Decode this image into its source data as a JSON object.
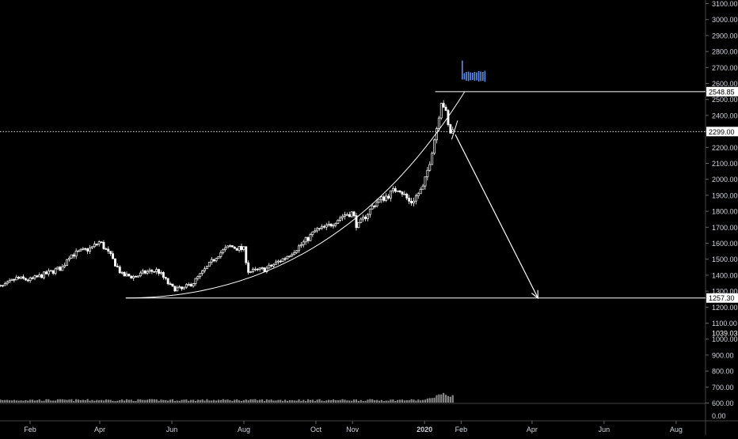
{
  "chart_data": {
    "type": "candlestick",
    "title": "",
    "colors": {
      "background": "#000000",
      "candle": "#ffffff",
      "line": "#ffffff",
      "axis_text": "#d1d4dc",
      "price_label_bg": "#ffffff",
      "price_label_text": "#000000",
      "volume": "#9e9e9e",
      "mini_bars": "#5b8def"
    },
    "price_axis": {
      "ylim": [
        600,
        3100
      ],
      "ticks": [
        "3100.00",
        "3000.00",
        "2900.00",
        "2800.00",
        "2700.00",
        "2600.00",
        "2500.00",
        "2400.00",
        "2300.00",
        "2200.00",
        "2100.00",
        "2000.00",
        "1900.00",
        "1800.00",
        "1700.00",
        "1600.00",
        "1500.00",
        "1400.00",
        "1300.00",
        "1200.00",
        "1100.00",
        "1000.00",
        "900.00",
        "800.00",
        "700.00",
        "600.00"
      ],
      "tick_values": [
        3100,
        3000,
        2900,
        2800,
        2700,
        2600,
        2500,
        2400,
        2300,
        2200,
        2100,
        2000,
        1900,
        1800,
        1700,
        1600,
        1500,
        1400,
        1300,
        1200,
        1100,
        1000,
        900,
        800,
        700,
        600
      ],
      "labels": [
        {
          "text": "2548.85",
          "value": 2548.85,
          "style": "box"
        },
        {
          "text": "2299.00",
          "value": 2299.0,
          "style": "box"
        },
        {
          "text": "1257.30",
          "value": 1257.3,
          "style": "box"
        },
        {
          "text": "1039.03",
          "value": 1039.03,
          "style": "plain"
        }
      ]
    },
    "volume_axis": {
      "ticks": [
        "0.00"
      ]
    },
    "time_axis": {
      "labels": [
        "Feb",
        "Apr",
        "Jun",
        "Aug",
        "Oct",
        "Nov",
        "2020",
        "Feb",
        "Apr",
        "Jun",
        "Aug"
      ],
      "bold_label": "2020",
      "dates": [
        "2019-02-01",
        "2019-04-01",
        "2019-06-01",
        "2019-08-01",
        "2019-10-01",
        "2019-11-01",
        "2020-01-01",
        "2020-02-01",
        "2020-04-01",
        "2020-06-01",
        "2020-08-01"
      ]
    },
    "series": [
      {
        "name": "",
        "type": "candlestick",
        "anchors": [
          [
            "2019-01-01",
            1320
          ],
          [
            "2019-01-10",
            1330
          ],
          [
            "2019-01-20",
            1380
          ],
          [
            "2019-02-01",
            1370
          ],
          [
            "2019-02-15",
            1410
          ],
          [
            "2019-03-01",
            1450
          ],
          [
            "2019-03-05",
            1520
          ],
          [
            "2019-03-15",
            1545
          ],
          [
            "2019-03-25",
            1570
          ],
          [
            "2019-04-01",
            1610
          ],
          [
            "2019-04-10",
            1520
          ],
          [
            "2019-04-20",
            1400
          ],
          [
            "2019-05-01",
            1390
          ],
          [
            "2019-05-10",
            1420
          ],
          [
            "2019-05-20",
            1430
          ],
          [
            "2019-06-01",
            1320
          ],
          [
            "2019-06-10",
            1310
          ],
          [
            "2019-06-20",
            1360
          ],
          [
            "2019-07-01",
            1450
          ],
          [
            "2019-07-10",
            1530
          ],
          [
            "2019-07-20",
            1580
          ],
          [
            "2019-08-01",
            1560
          ],
          [
            "2019-08-05",
            1420
          ],
          [
            "2019-08-20",
            1440
          ],
          [
            "2019-09-05",
            1510
          ],
          [
            "2019-09-20",
            1600
          ],
          [
            "2019-10-01",
            1680
          ],
          [
            "2019-10-10",
            1700
          ],
          [
            "2019-10-25",
            1780
          ],
          [
            "2019-11-01",
            1790
          ],
          [
            "2019-11-05",
            1700
          ],
          [
            "2019-11-20",
            1850
          ],
          [
            "2019-12-01",
            1900
          ],
          [
            "2019-12-10",
            1950
          ],
          [
            "2019-12-20",
            1850
          ],
          [
            "2019-12-31",
            1950
          ],
          [
            "2020-01-05",
            2100
          ],
          [
            "2020-01-12",
            2350
          ],
          [
            "2020-01-15",
            2500
          ],
          [
            "2020-01-18",
            2450
          ],
          [
            "2020-01-22",
            2290
          ],
          [
            "2020-01-26",
            2310
          ]
        ]
      }
    ],
    "trend_lines": [
      {
        "from": [
          "2019-04-23",
          1257.3
        ],
        "to": [
          "2020-02-04",
          2548.85
        ],
        "kind": "parabolic-curve"
      },
      {
        "from": [
          "2019-04-23",
          1257.3
        ],
        "to": [
          "2020-12-31",
          1257.3
        ],
        "kind": "horizontal"
      },
      {
        "from": [
          "2020-01-10",
          2548.85
        ],
        "to": [
          "2020-12-31",
          2548.85
        ],
        "kind": "horizontal"
      },
      {
        "from": [
          "2020-01-24",
          2250
        ],
        "to": [
          "2020-01-29",
          2368
        ],
        "kind": "segment"
      },
      {
        "from": [
          "2020-01-27",
          2280
        ],
        "to": [
          "2020-04-06",
          1257.3
        ],
        "kind": "arrow"
      }
    ],
    "horizontal_lines": [
      {
        "value": 2299.0,
        "style": "dotted"
      }
    ],
    "mini_bar_values": [
      120,
      40,
      55,
      60,
      50,
      45,
      55,
      50,
      65,
      60,
      55,
      70
    ],
    "grid": false,
    "legend": "none"
  }
}
